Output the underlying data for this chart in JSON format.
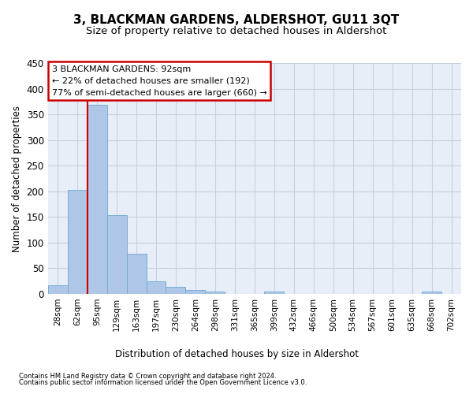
{
  "title": "3, BLACKMAN GARDENS, ALDERSHOT, GU11 3QT",
  "subtitle": "Size of property relative to detached houses in Aldershot",
  "xlabel": "Distribution of detached houses by size in Aldershot",
  "ylabel": "Number of detached properties",
  "footnote1": "Contains HM Land Registry data © Crown copyright and database right 2024.",
  "footnote2": "Contains public sector information licensed under the Open Government Licence v3.0.",
  "bar_values": [
    17,
    202,
    368,
    154,
    79,
    24,
    14,
    8,
    5,
    0,
    0,
    5,
    0,
    0,
    0,
    0,
    0,
    0,
    0,
    5,
    0
  ],
  "bar_labels": [
    "28sqm",
    "62sqm",
    "95sqm",
    "129sqm",
    "163sqm",
    "197sqm",
    "230sqm",
    "264sqm",
    "298sqm",
    "331sqm",
    "365sqm",
    "399sqm",
    "432sqm",
    "466sqm",
    "500sqm",
    "534sqm",
    "567sqm",
    "601sqm",
    "635sqm",
    "668sqm",
    "702sqm"
  ],
  "bar_color": "#aec6e8",
  "bar_edge_color": "#7aafd4",
  "grid_color": "#c8d0e0",
  "red_line_x": 2,
  "annotation_title": "3 BLACKMAN GARDENS: 92sqm",
  "annotation_line1": "← 22% of detached houses are smaller (192)",
  "annotation_line2": "77% of semi-detached houses are larger (660) →",
  "annotation_box_color": "#ffffff",
  "annotation_border_color": "#cc0000",
  "red_line_color": "#cc0000",
  "ylim": [
    0,
    450
  ],
  "yticks": [
    0,
    50,
    100,
    150,
    200,
    250,
    300,
    350,
    400,
    450
  ],
  "background_color": "#e8eef8",
  "title_fontsize": 11,
  "subtitle_fontsize": 9.5
}
